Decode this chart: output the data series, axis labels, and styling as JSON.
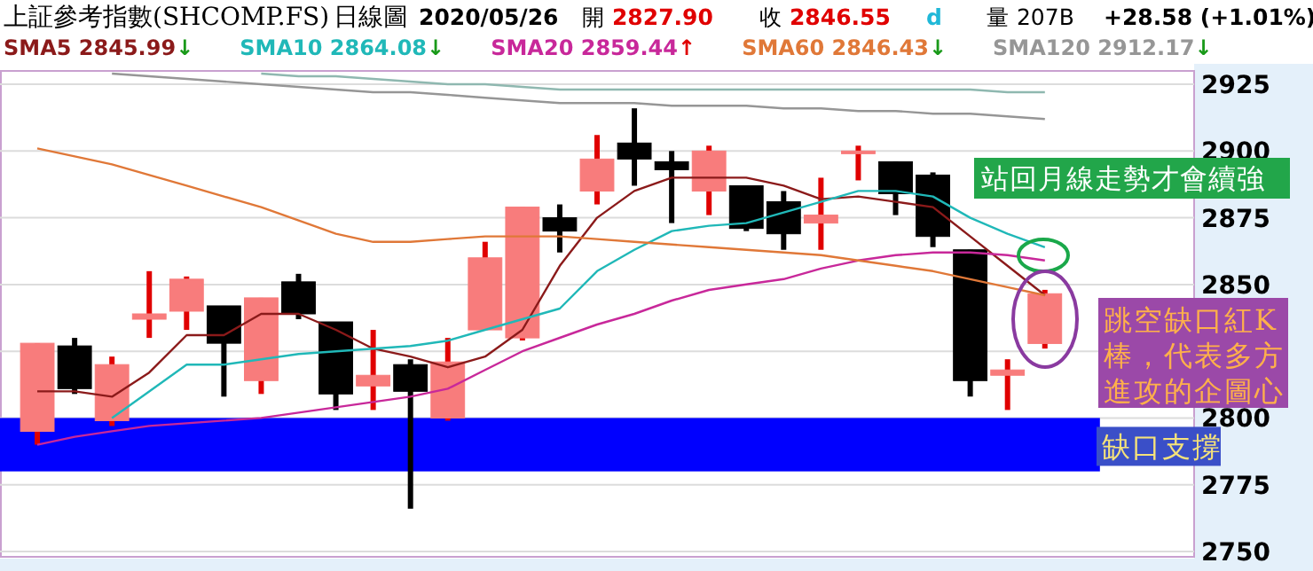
{
  "chart_data": {
    "type": "candlestick",
    "title": "上証參考指數(SHCOMP.FS)",
    "subtitle": "日線圖",
    "categories": [
      null,
      null,
      null,
      null,
      null,
      null,
      null,
      null,
      null,
      null,
      null,
      null,
      null,
      null,
      null,
      null,
      null,
      null,
      null,
      null,
      null,
      null,
      null,
      null,
      null,
      null,
      null,
      null
    ],
    "ohlc": [
      [
        2795,
        2828,
        2790,
        2828
      ],
      [
        2827,
        2830,
        2809,
        2811
      ],
      [
        2799,
        2823,
        2797,
        2820
      ],
      [
        2837,
        2855,
        2830,
        2839
      ],
      [
        2840,
        2853,
        2833,
        2852
      ],
      [
        2842,
        2842,
        2808,
        2828
      ],
      [
        2814,
        2845,
        2809,
        2845
      ],
      [
        2851,
        2854,
        2837,
        2839
      ],
      [
        2836,
        2836,
        2803,
        2809
      ],
      [
        2812,
        2833,
        2803,
        2816
      ],
      [
        2820,
        2822,
        2766,
        2810
      ],
      [
        2800,
        2830,
        2799,
        2821
      ],
      [
        2833,
        2866,
        2833,
        2860
      ],
      [
        2830,
        2879,
        2829,
        2879
      ],
      [
        2875,
        2880,
        2862,
        2870
      ],
      [
        2885,
        2906,
        2880,
        2897
      ],
      [
        2903,
        2916,
        2887,
        2897
      ],
      [
        2896,
        2900,
        2873,
        2893
      ],
      [
        2885,
        2902,
        2876,
        2900
      ],
      [
        2887,
        2887,
        2870,
        2871
      ],
      [
        2881,
        2885,
        2863,
        2869
      ],
      [
        2873,
        2890,
        2863,
        2876
      ],
      [
        2899,
        2902,
        2889,
        2900
      ],
      [
        2896,
        2896,
        2876,
        2884
      ],
      [
        2891,
        2892,
        2864,
        2868
      ],
      [
        2863,
        2863,
        2808,
        2814
      ],
      [
        2816,
        2822,
        2803,
        2818
      ],
      [
        2827.9,
        2848,
        2826,
        2846.55
      ]
    ],
    "colors": [
      "#f87c7c",
      "#000000",
      "#f87c7c",
      "#f87c7c",
      "#f87c7c",
      "#000000",
      "#f87c7c",
      "#000000",
      "#000000",
      "#f87c7c",
      "#000000",
      "#f87c7c",
      "#f87c7c",
      "#f87c7c",
      "#000000",
      "#f87c7c",
      "#000000",
      "#000000",
      "#f87c7c",
      "#000000",
      "#000000",
      "#f87c7c",
      "#f87c7c",
      "#000000",
      "#000000",
      "#000000",
      "#f87c7c",
      "#f87c7c"
    ],
    "series": [
      {
        "type": "line",
        "name": "SMA5 2845.99↓",
        "color": "#8b1a1a",
        "values": [
          2810,
          2810,
          2808,
          2817,
          2831,
          2831,
          2839,
          2839,
          2833,
          2826,
          2823,
          2819,
          2823,
          2833,
          2857,
          2875,
          2885,
          2890,
          2890,
          2890,
          2887,
          2882,
          2883,
          2881,
          2879,
          2868,
          2857,
          2846
        ]
      },
      {
        "type": "line",
        "name": "SMA10 2864.08↓",
        "color": "#20b8b8",
        "values": [
          null,
          null,
          2800,
          2810,
          2820,
          2820,
          2822,
          2824,
          2825,
          2826,
          2827,
          2829,
          2833,
          2837,
          2841,
          2855,
          2863,
          2870,
          2872,
          2873,
          2877,
          2881,
          2885,
          2885,
          2883,
          2875,
          2869,
          2864
        ]
      },
      {
        "type": "line",
        "name": "SMA20 2859.44↑",
        "color": "#c8289a",
        "values": [
          2790,
          2793,
          2795,
          2797,
          2798,
          2799,
          2800,
          2802,
          2804,
          2806,
          2808,
          2811,
          2818,
          2825,
          2830,
          2835,
          2839,
          2844,
          2848,
          2850,
          2852,
          2856,
          2859,
          2861,
          2862,
          2862,
          2861,
          2859
        ]
      },
      {
        "type": "line",
        "name": "SMA60 2846.43↓",
        "color": "#e07838",
        "values": [
          2901,
          2898,
          2895,
          2891,
          2887,
          2883,
          2879,
          2874,
          2869,
          2866,
          2866,
          2867,
          2868,
          2868,
          2868,
          2867,
          2866,
          2865,
          2864,
          2863,
          2862,
          2861,
          2859,
          2857,
          2855,
          2852,
          2849,
          2846
        ]
      },
      {
        "type": "line",
        "name": "SMA120 2912.17↓",
        "color": "#969696",
        "values": [
          null,
          null,
          2929,
          2928,
          2927,
          2926,
          2925,
          2924,
          2923,
          2922,
          2922,
          2921,
          2920,
          2919,
          2918,
          2918,
          2918,
          2917,
          2917,
          2917,
          2916,
          2916,
          2915,
          2915,
          2914,
          2914,
          2913,
          2912
        ]
      },
      {
        "type": "line",
        "color": "#8fb8b0",
        "values": [
          null,
          null,
          null,
          null,
          null,
          null,
          2929,
          2928,
          2928,
          2927,
          2926,
          2925,
          2925,
          2924,
          2923,
          2923,
          2923,
          2923,
          2923,
          2923,
          2923,
          2923,
          2923,
          2923,
          2923,
          2923,
          2922,
          2922
        ]
      }
    ],
    "ylim": [
      2748,
      2930
    ],
    "yticks": [
      2750,
      2775,
      2800,
      {
        "value": 2825,
        "label": null
      },
      2850,
      2875,
      2900,
      2925
    ],
    "tick_labels": "y",
    "grid": "y",
    "legend": "top",
    "bands": [
      {
        "axis": "y",
        "from": 2780,
        "to": 2800,
        "label": "缺口支撐",
        "color": "#0000ff"
      }
    ],
    "annotations": [
      "2020/05/26",
      "開 2827.90",
      "收 2846.55",
      "d",
      "量 207B",
      "+28.58 (+1.01%)",
      "站回月線走勢才會續強",
      "跳空缺口紅K棒，代表多方進攻的企圖心"
    ]
  }
}
